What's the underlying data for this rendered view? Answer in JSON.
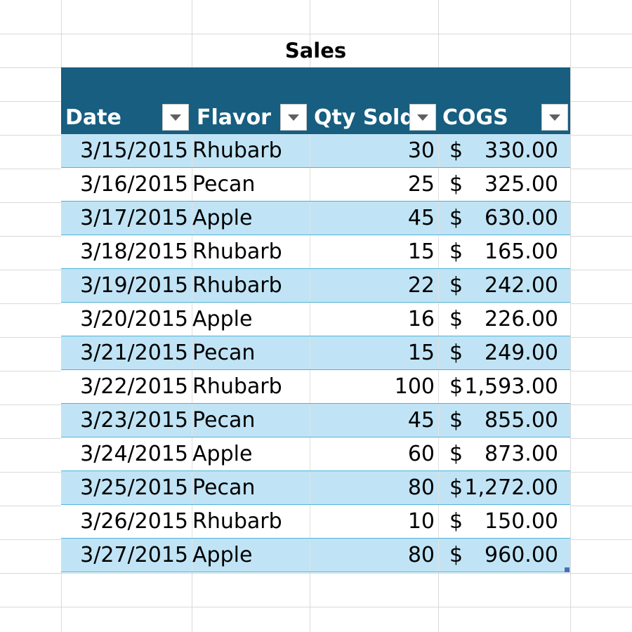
{
  "sheet": {
    "title": "Sales"
  },
  "table": {
    "columns": [
      {
        "key": "date",
        "label": "Date"
      },
      {
        "key": "flavor",
        "label": "Flavor"
      },
      {
        "key": "qty",
        "label": "Qty Sold"
      },
      {
        "key": "cogs",
        "label": "COGS"
      }
    ],
    "currency_symbol": "$",
    "rows": [
      {
        "date": "3/15/2015",
        "flavor": "Rhubarb",
        "qty": "30",
        "cogs": "330.00"
      },
      {
        "date": "3/16/2015",
        "flavor": "Pecan",
        "qty": "25",
        "cogs": "325.00"
      },
      {
        "date": "3/17/2015",
        "flavor": "Apple",
        "qty": "45",
        "cogs": "630.00"
      },
      {
        "date": "3/18/2015",
        "flavor": "Rhubarb",
        "qty": "15",
        "cogs": "165.00"
      },
      {
        "date": "3/19/2015",
        "flavor": "Rhubarb",
        "qty": "22",
        "cogs": "242.00"
      },
      {
        "date": "3/20/2015",
        "flavor": "Apple",
        "qty": "16",
        "cogs": "226.00"
      },
      {
        "date": "3/21/2015",
        "flavor": "Pecan",
        "qty": "15",
        "cogs": "249.00"
      },
      {
        "date": "3/22/2015",
        "flavor": "Rhubarb",
        "qty": "100",
        "cogs": "1,593.00"
      },
      {
        "date": "3/23/2015",
        "flavor": "Pecan",
        "qty": "45",
        "cogs": "855.00"
      },
      {
        "date": "3/24/2015",
        "flavor": "Apple",
        "qty": "60",
        "cogs": "873.00"
      },
      {
        "date": "3/25/2015",
        "flavor": "Pecan",
        "qty": "80",
        "cogs": "1,272.00"
      },
      {
        "date": "3/26/2015",
        "flavor": "Rhubarb",
        "qty": "10",
        "cogs": "150.00"
      },
      {
        "date": "3/27/2015",
        "flavor": "Apple",
        "qty": "80",
        "cogs": "960.00"
      }
    ]
  },
  "colors": {
    "header_fill": "#175e80",
    "band_fill": "#c0e4f5",
    "row_border": "#4eb4d9",
    "gridline": "#d9d9d9"
  },
  "icons": {
    "filter": "chevron-down-icon",
    "resize": "resize-handle-icon"
  }
}
